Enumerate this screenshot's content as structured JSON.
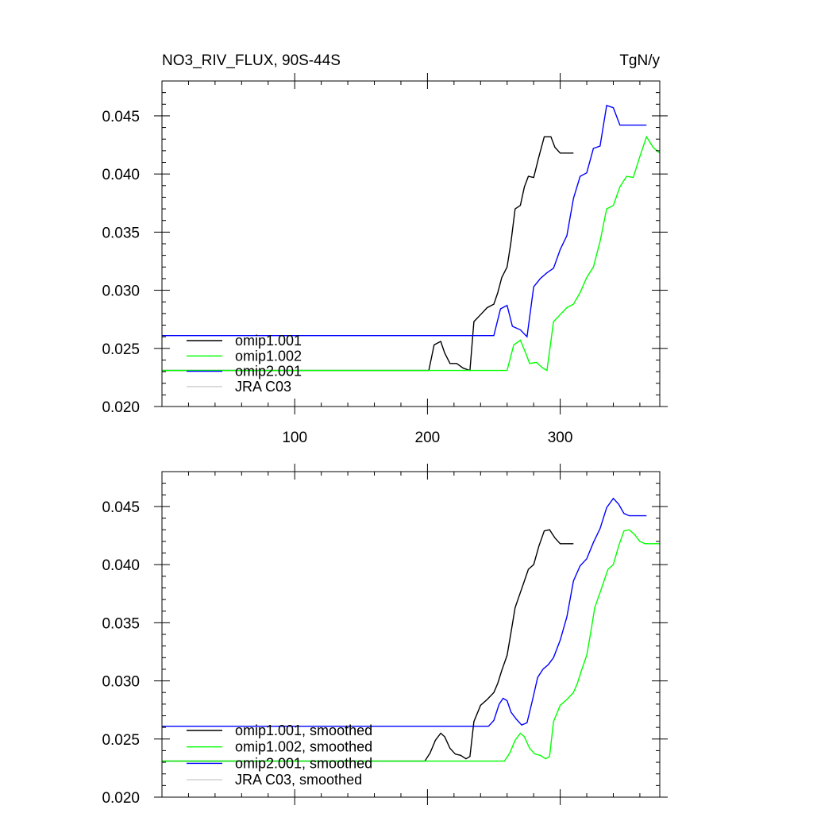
{
  "chart_data": [
    {
      "type": "line",
      "title_left": "NO3_RIV_FLUX, 90S-44S",
      "title_right": "TgN/y",
      "xlim": [
        0,
        375
      ],
      "ylim": [
        0.02,
        0.048
      ],
      "x_ticks": [
        100,
        200,
        300
      ],
      "x_tick_labels": [
        "100",
        "200",
        "300"
      ],
      "y_ticks": [
        0.02,
        0.025,
        0.03,
        0.035,
        0.04,
        0.045
      ],
      "y_tick_labels": [
        "0.020",
        "0.025",
        "0.030",
        "0.035",
        "0.040",
        "0.045"
      ],
      "legend_position": "lower-left",
      "series": [
        {
          "name": "omip1.001",
          "color": "#000000",
          "x": [
            0,
            201,
            205,
            210,
            213,
            217,
            222,
            227,
            232,
            235,
            240,
            245,
            250,
            253,
            256,
            260,
            263,
            266,
            270,
            273,
            276,
            280,
            284,
            288,
            293,
            296,
            300,
            304,
            310
          ],
          "y": [
            0.0231,
            0.0231,
            0.0253,
            0.0256,
            0.0246,
            0.0237,
            0.0237,
            0.0233,
            0.0231,
            0.0273,
            0.0279,
            0.0285,
            0.0288,
            0.0298,
            0.0311,
            0.032,
            0.0342,
            0.037,
            0.0373,
            0.0389,
            0.0398,
            0.0397,
            0.0415,
            0.0432,
            0.0432,
            0.0423,
            0.0418,
            0.0418,
            0.0418
          ]
        },
        {
          "name": "omip1.002",
          "color": "#00ff00",
          "x": [
            0,
            260,
            265,
            270,
            274,
            277,
            282,
            287,
            290,
            295,
            300,
            305,
            310,
            315,
            320,
            325,
            330,
            335,
            340,
            345,
            350,
            355,
            360,
            365,
            370,
            375
          ],
          "y": [
            0.0231,
            0.0231,
            0.0253,
            0.0257,
            0.0246,
            0.0237,
            0.0238,
            0.0233,
            0.0231,
            0.0273,
            0.0279,
            0.0285,
            0.0288,
            0.0298,
            0.0311,
            0.032,
            0.0342,
            0.037,
            0.0373,
            0.0389,
            0.0398,
            0.0397,
            0.0415,
            0.0432,
            0.0423,
            0.0418
          ]
        },
        {
          "name": "omip2.001",
          "color": "#0000ff",
          "x": [
            0,
            250,
            255,
            260,
            264,
            270,
            275,
            280,
            285,
            290,
            295,
            300,
            305,
            310,
            315,
            320,
            325,
            330,
            335,
            340,
            345,
            350,
            360,
            365
          ],
          "y": [
            0.0261,
            0.0261,
            0.0284,
            0.0287,
            0.0269,
            0.0266,
            0.026,
            0.0303,
            0.031,
            0.0315,
            0.0319,
            0.0335,
            0.0347,
            0.0379,
            0.0398,
            0.0401,
            0.0422,
            0.0424,
            0.0459,
            0.0457,
            0.0442,
            0.0442,
            0.0442,
            0.0442
          ]
        },
        {
          "name": "JRA C03",
          "color": "#cccccc",
          "x": [],
          "y": []
        }
      ]
    },
    {
      "type": "line",
      "xlim": [
        0,
        375
      ],
      "ylim": [
        0.02,
        0.048
      ],
      "x_ticks": [
        100,
        200,
        300
      ],
      "y_ticks": [
        0.02,
        0.025,
        0.03,
        0.035,
        0.04,
        0.045
      ],
      "y_tick_labels": [
        "0.020",
        "0.025",
        "0.030",
        "0.035",
        "0.040",
        "0.045"
      ],
      "legend_position": "lower-left",
      "series": [
        {
          "name": "omip1.001, smoothed",
          "color": "#000000",
          "x": [
            0,
            198,
            202,
            206,
            210,
            213,
            217,
            221,
            225,
            229,
            232,
            235,
            240,
            245,
            250,
            253,
            256,
            260,
            263,
            266,
            270,
            273,
            276,
            280,
            284,
            288,
            292,
            296,
            300,
            304,
            310
          ],
          "y": [
            0.0231,
            0.0231,
            0.0238,
            0.0249,
            0.0255,
            0.0252,
            0.0242,
            0.0237,
            0.0236,
            0.0233,
            0.0235,
            0.0265,
            0.0279,
            0.0284,
            0.029,
            0.0298,
            0.0309,
            0.0322,
            0.0342,
            0.0363,
            0.0376,
            0.0386,
            0.0396,
            0.04,
            0.0416,
            0.0429,
            0.043,
            0.0423,
            0.0418,
            0.0418,
            0.0418
          ]
        },
        {
          "name": "omip1.002, smoothed",
          "color": "#00ff00",
          "x": [
            0,
            258,
            262,
            266,
            270,
            273,
            277,
            281,
            285,
            289,
            292,
            295,
            300,
            305,
            310,
            313,
            316,
            320,
            323,
            326,
            330,
            333,
            336,
            340,
            344,
            348,
            352,
            356,
            360,
            364,
            370,
            375
          ],
          "y": [
            0.0231,
            0.0231,
            0.0238,
            0.0249,
            0.0255,
            0.0252,
            0.0242,
            0.0237,
            0.0236,
            0.0233,
            0.0235,
            0.0265,
            0.0279,
            0.0284,
            0.029,
            0.0298,
            0.0309,
            0.0322,
            0.0342,
            0.0363,
            0.0376,
            0.0386,
            0.0396,
            0.04,
            0.0416,
            0.0429,
            0.043,
            0.0426,
            0.042,
            0.0418,
            0.0418,
            0.0418
          ]
        },
        {
          "name": "omip2.001, smoothed",
          "color": "#0000ff",
          "x": [
            0,
            246,
            250,
            254,
            257,
            260,
            263,
            267,
            271,
            275,
            279,
            283,
            287,
            291,
            295,
            300,
            305,
            310,
            315,
            320,
            325,
            330,
            335,
            340,
            344,
            348,
            352,
            356,
            360,
            365
          ],
          "y": [
            0.0261,
            0.0261,
            0.0266,
            0.028,
            0.0285,
            0.0283,
            0.0273,
            0.0267,
            0.0262,
            0.0264,
            0.0283,
            0.0303,
            0.031,
            0.0314,
            0.032,
            0.0335,
            0.0355,
            0.0386,
            0.0399,
            0.0405,
            0.0419,
            0.0431,
            0.0449,
            0.0457,
            0.0452,
            0.0444,
            0.0442,
            0.0442,
            0.0442,
            0.0442
          ]
        },
        {
          "name": "JRA C03, smoothed",
          "color": "#cccccc",
          "x": [],
          "y": []
        }
      ]
    }
  ]
}
